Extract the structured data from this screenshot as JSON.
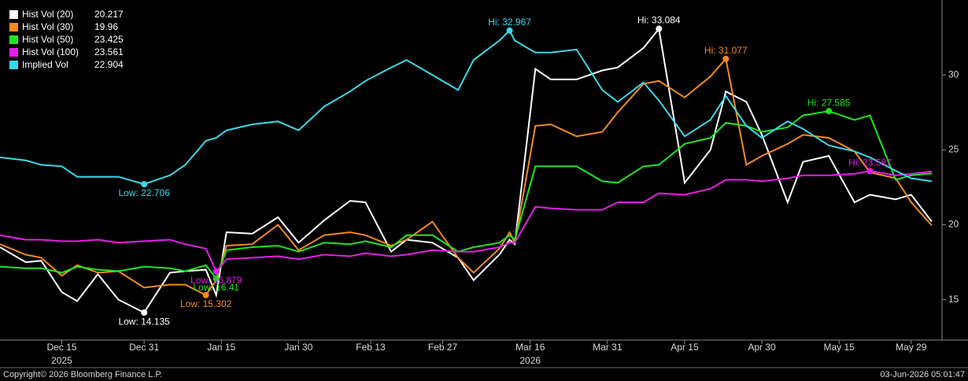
{
  "chart_data": {
    "type": "line",
    "x": [
      "2025-12-03",
      "2025-12-08",
      "2025-12-11",
      "2025-12-15",
      "2025-12-18",
      "2025-12-22",
      "2025-12-26",
      "2025-12-31",
      "2026-01-05",
      "2026-01-08",
      "2026-01-12",
      "2026-01-14",
      "2026-01-16",
      "2026-01-21",
      "2026-01-26",
      "2026-01-30",
      "2026-02-04",
      "2026-02-09",
      "2026-02-12",
      "2026-02-17",
      "2026-02-20",
      "2026-02-25",
      "2026-03-02",
      "2026-03-05",
      "2026-03-10",
      "2026-03-12",
      "2026-03-13",
      "2026-03-17",
      "2026-03-20",
      "2026-03-25",
      "2026-03-30",
      "2026-04-02",
      "2026-04-07",
      "2026-04-10",
      "2026-04-15",
      "2026-04-20",
      "2026-04-23",
      "2026-04-27",
      "2026-04-30",
      "2026-05-05",
      "2026-05-08",
      "2026-05-13",
      "2026-05-18",
      "2026-05-21",
      "2026-05-26",
      "2026-05-29",
      "2026-06-02"
    ],
    "xlim": [
      "2025-12-03",
      "2026-06-04"
    ],
    "xticks": [
      {
        "value": "2025-12-15",
        "label": "Dec 15"
      },
      {
        "value": "2025-12-31",
        "label": "Dec 31"
      },
      {
        "value": "2026-01-15",
        "label": "Jan 15"
      },
      {
        "value": "2026-01-30",
        "label": "Jan 30"
      },
      {
        "value": "2026-02-13",
        "label": "Feb 13"
      },
      {
        "value": "2026-02-27",
        "label": "Feb 27"
      },
      {
        "value": "2026-03-16",
        "label": "Mar 16"
      },
      {
        "value": "2026-03-31",
        "label": "Mar 31"
      },
      {
        "value": "2026-04-15",
        "label": "Apr 15"
      },
      {
        "value": "2026-04-30",
        "label": "Apr 30"
      },
      {
        "value": "2026-05-15",
        "label": "May 15"
      },
      {
        "value": "2026-05-29",
        "label": "May 29"
      }
    ],
    "year_labels": [
      {
        "value": "2025-12-15",
        "label": "2025"
      },
      {
        "value": "2026-03-16",
        "label": "2026"
      }
    ],
    "ylim": [
      12.3,
      34.9
    ],
    "yticks": [
      15,
      20,
      25,
      30
    ],
    "series": [
      {
        "name": "Hist Vol (20)",
        "color": "#ffffff",
        "values": [
          18.5,
          17.5,
          17.6,
          15.5,
          14.9,
          16.7,
          15.0,
          14.135,
          16.8,
          16.9,
          17.0,
          15.3,
          19.5,
          19.4,
          20.5,
          18.8,
          20.3,
          21.6,
          21.5,
          18.2,
          19.0,
          18.8,
          17.8,
          16.3,
          18.0,
          19.0,
          18.7,
          30.4,
          29.7,
          29.7,
          30.3,
          30.5,
          31.8,
          33.084,
          22.8,
          25.0,
          28.9,
          28.2,
          26.0,
          21.5,
          24.2,
          24.6,
          21.5,
          22.0,
          21.7,
          22.0,
          20.217
        ],
        "high": {
          "x": "2026-04-10",
          "value": 33.084,
          "label": "Hi: 33.084"
        },
        "low": {
          "x": "2025-12-31",
          "value": 14.135,
          "label": "Low: 14.135"
        }
      },
      {
        "name": "Hist Vol (30)",
        "color": "#f68a1e",
        "values": [
          18.7,
          18.0,
          17.8,
          16.6,
          17.3,
          16.8,
          16.9,
          15.8,
          16.0,
          16.0,
          15.302,
          16.3,
          18.6,
          18.7,
          20.0,
          18.3,
          19.3,
          19.5,
          19.3,
          18.6,
          19.0,
          20.2,
          17.8,
          16.8,
          18.4,
          19.5,
          18.8,
          26.6,
          26.7,
          25.9,
          26.2,
          27.5,
          29.4,
          29.6,
          28.5,
          29.9,
          31.077,
          24.0,
          24.6,
          25.4,
          26.0,
          25.8,
          24.9,
          23.5,
          23.1,
          21.5,
          19.96
        ],
        "high": {
          "x": "2026-04-23",
          "value": 31.077,
          "label": "Hi: 31.077"
        },
        "low": {
          "x": "2026-01-12",
          "value": 15.302,
          "label": "Low: 15.302"
        }
      },
      {
        "name": "Hist Vol (50)",
        "color": "#1ee61e",
        "values": [
          17.2,
          17.1,
          17.1,
          16.8,
          17.2,
          17.0,
          16.9,
          17.2,
          17.1,
          16.9,
          17.3,
          16.41,
          18.3,
          18.5,
          18.6,
          18.2,
          18.8,
          18.7,
          18.9,
          18.5,
          19.3,
          19.3,
          18.2,
          18.5,
          18.8,
          19.3,
          19.0,
          23.9,
          23.9,
          23.9,
          22.9,
          22.8,
          23.9,
          24.0,
          25.4,
          25.8,
          26.8,
          26.6,
          26.2,
          26.5,
          27.3,
          27.585,
          27.0,
          27.3,
          23.0,
          23.3,
          23.425
        ],
        "high": {
          "x": "2026-05-13",
          "value": 27.585,
          "label": "Hi: 27.585"
        },
        "low": {
          "x": "2026-01-14",
          "value": 16.41,
          "label": "Low: 16.41"
        }
      },
      {
        "name": "Hist Vol (100)",
        "color": "#e61ee6",
        "values": [
          19.3,
          19.0,
          19.0,
          18.9,
          18.9,
          19.0,
          18.8,
          18.9,
          19.0,
          18.7,
          18.4,
          16.879,
          17.7,
          17.8,
          17.9,
          17.7,
          18.0,
          17.9,
          18.1,
          17.9,
          18.0,
          18.3,
          18.2,
          18.2,
          18.5,
          18.8,
          18.8,
          21.2,
          21.1,
          21.0,
          21.0,
          21.5,
          21.5,
          22.1,
          22.0,
          22.4,
          23.0,
          23.0,
          22.9,
          23.1,
          23.3,
          23.3,
          23.4,
          23.587,
          23.3,
          23.4,
          23.561
        ],
        "high": {
          "x": "2026-05-21",
          "value": 23.587,
          "label": "Hi: 23.587"
        },
        "low": {
          "x": "2026-01-14",
          "value": 16.879,
          "label": "Low: 16.879"
        }
      },
      {
        "name": "Implied Vol",
        "color": "#3ad8e8",
        "values": [
          24.5,
          24.3,
          24.0,
          23.9,
          23.2,
          23.2,
          23.2,
          22.706,
          23.3,
          24.0,
          25.6,
          25.8,
          26.3,
          26.7,
          26.9,
          26.3,
          27.9,
          28.9,
          29.6,
          30.5,
          31.0,
          30.0,
          29.0,
          31.0,
          32.3,
          32.967,
          32.3,
          31.5,
          31.5,
          31.7,
          29.0,
          28.2,
          29.5,
          28.3,
          25.9,
          27.0,
          28.6,
          26.6,
          25.8,
          26.9,
          26.4,
          25.3,
          24.9,
          24.5,
          23.6,
          23.1,
          22.904
        ],
        "high": {
          "x": "2026-03-12",
          "value": 32.967,
          "label": "Hi: 32.967"
        },
        "low": {
          "x": "2025-12-31",
          "value": 22.706,
          "label": "Low: 22.706"
        }
      }
    ],
    "copyright": "Copyright© 2026 Bloomberg Finance L.P.",
    "timestamp": "03-Jun-2026 05:01:47"
  }
}
